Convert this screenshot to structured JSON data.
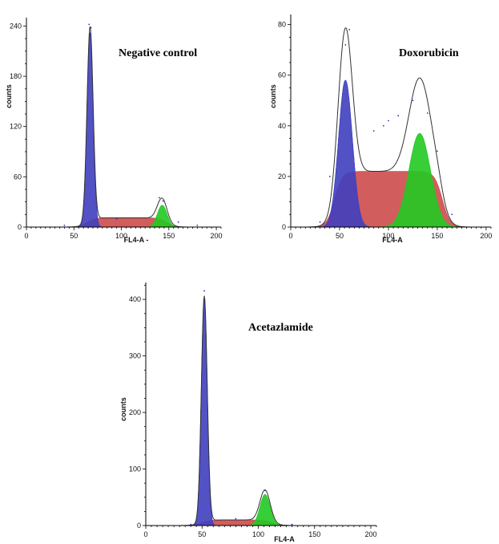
{
  "chart_data": [
    {
      "type": "area",
      "title": "Negative control",
      "xlabel": "FL4-A  -",
      "ylabel": "counts",
      "xlim": [
        0,
        205
      ],
      "ylim": [
        0,
        250
      ],
      "xticks": [
        "0",
        "50",
        "100",
        "150",
        "200"
      ],
      "yticks": [
        "0",
        "60",
        "120",
        "180",
        "240"
      ],
      "series": [
        {
          "type": "g1",
          "color": "#3f3fbf",
          "mu": 67,
          "sigma": 3.2,
          "peak": 232
        },
        {
          "type": "s",
          "color": "#cc4b4b",
          "start": 64,
          "end": 148,
          "level": 11
        },
        {
          "type": "g2",
          "color": "#22c922",
          "mu": 143,
          "sigma": 5,
          "peak": 26
        }
      ],
      "envelope_peaks": [
        {
          "x": 67,
          "y": 238
        },
        {
          "x": 142,
          "y": 33
        }
      ],
      "scatter_points": [
        [
          66,
          242
        ],
        [
          68,
          238
        ],
        [
          140,
          35
        ],
        [
          144,
          31
        ],
        [
          40,
          2
        ],
        [
          95,
          10
        ],
        [
          160,
          6
        ],
        [
          180,
          2
        ]
      ]
    },
    {
      "type": "area",
      "title": "Doxorubicin",
      "xlabel": "FL4-A",
      "ylabel": "counts",
      "xlim": [
        0,
        205
      ],
      "ylim": [
        0,
        84
      ],
      "xticks": [
        "0",
        "50",
        "100",
        "150",
        "200"
      ],
      "yticks": [
        "0",
        "20",
        "40",
        "60",
        "80"
      ],
      "series": [
        {
          "type": "g1",
          "color": "#3f3fbf",
          "mu": 56,
          "sigma": 7,
          "peak": 58
        },
        {
          "type": "s",
          "color": "#cc4b4b",
          "start": 45,
          "end": 155,
          "level": 22
        },
        {
          "type": "g2",
          "color": "#22c922",
          "mu": 132,
          "sigma": 11,
          "peak": 37
        }
      ],
      "envelope_peaks": [
        {
          "x": 57,
          "y": 70
        },
        {
          "x": 128,
          "y": 49
        }
      ],
      "scatter_points": [
        [
          56,
          72
        ],
        [
          60,
          78
        ],
        [
          85,
          38
        ],
        [
          95,
          40
        ],
        [
          100,
          42
        ],
        [
          110,
          44
        ],
        [
          125,
          50
        ],
        [
          140,
          45
        ],
        [
          150,
          30
        ],
        [
          165,
          5
        ],
        [
          40,
          20
        ],
        [
          30,
          2
        ]
      ]
    },
    {
      "type": "area",
      "title": "Acetazlamide",
      "xlabel": "FL4-A",
      "ylabel": "counts",
      "xlim": [
        0,
        205
      ],
      "ylim": [
        0,
        430
      ],
      "xticks": [
        "0",
        "50",
        "100",
        "150",
        "200"
      ],
      "yticks": [
        "0",
        "100",
        "200",
        "300",
        "400"
      ],
      "series": [
        {
          "type": "g1",
          "color": "#3f3fbf",
          "mu": 52,
          "sigma": 2.6,
          "peak": 400
        },
        {
          "type": "s",
          "color": "#cc4b4b",
          "start": 50,
          "end": 112,
          "level": 10
        },
        {
          "type": "g2",
          "color": "#22c922",
          "mu": 106,
          "sigma": 4.5,
          "peak": 55
        }
      ],
      "envelope_peaks": [
        {
          "x": 52,
          "y": 415
        },
        {
          "x": 106,
          "y": 63
        }
      ],
      "scatter_points": [
        [
          52,
          415
        ],
        [
          106,
          62
        ],
        [
          80,
          12
        ],
        [
          40,
          2
        ],
        [
          130,
          2
        ]
      ]
    }
  ]
}
